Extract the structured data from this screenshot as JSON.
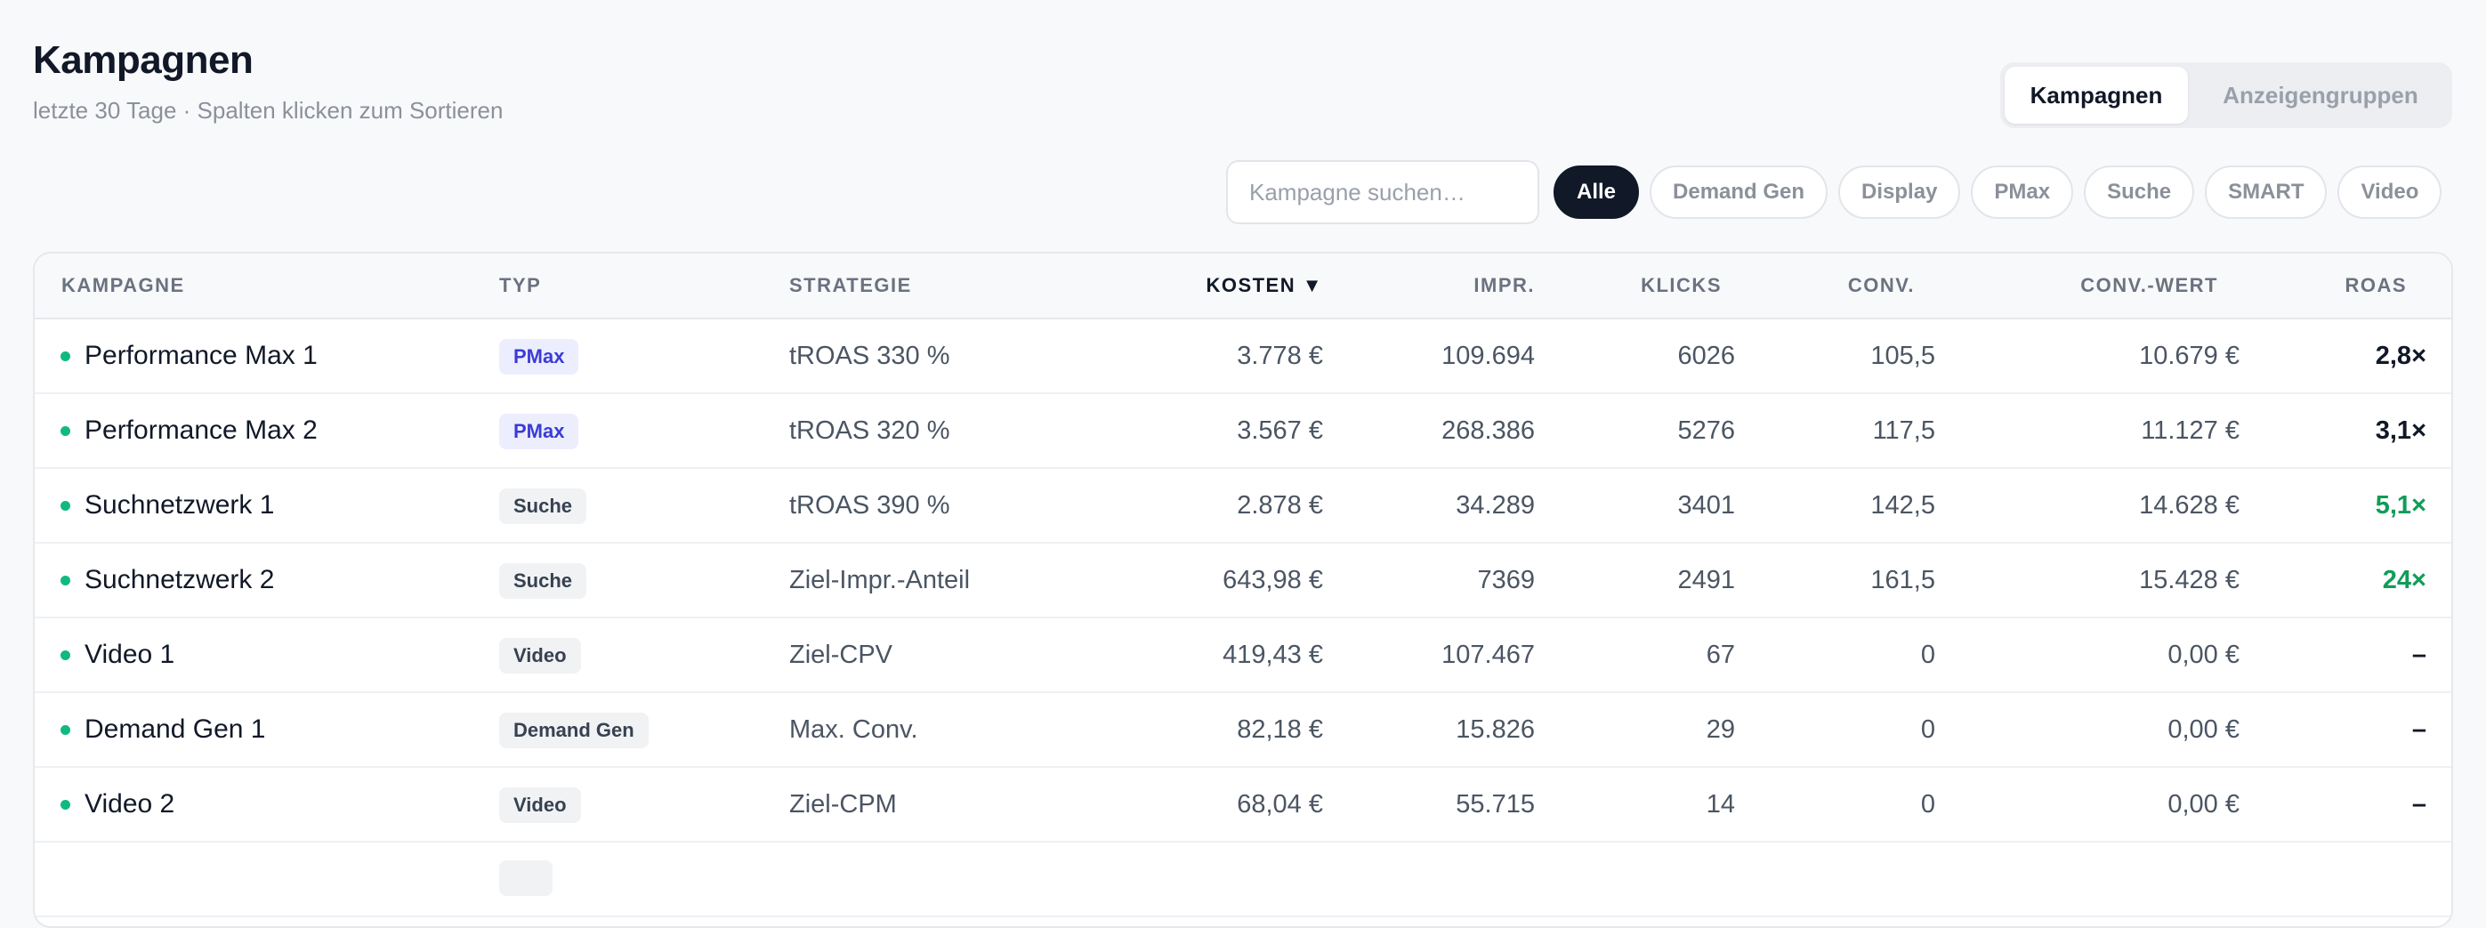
{
  "page": {
    "title": "Kampagnen",
    "subtitle": "letzte 30 Tage · Spalten klicken zum Sortieren"
  },
  "view_toggle": {
    "options": [
      "Kampagnen",
      "Anzeigengruppen"
    ],
    "selected": "Kampagnen"
  },
  "search": {
    "placeholder": "Kampagne suchen…",
    "value": ""
  },
  "filters": {
    "options": [
      "Alle",
      "Demand Gen",
      "Display",
      "PMax",
      "Suche",
      "SMART",
      "Video"
    ],
    "selected": "Alle"
  },
  "table": {
    "columns": [
      "KAMPAGNE",
      "TYP",
      "STRATEGIE",
      "KOSTEN ▼",
      "IMPR.",
      "KLICKS",
      "CONV.",
      "CONV.-WERT",
      "ROAS"
    ],
    "sorted_column": "KOSTEN",
    "rows": [
      {
        "name": "Performance Max 1",
        "type": "PMax",
        "strategy": "tROAS 330 %",
        "cost": "3.778 €",
        "impr": "109.694",
        "clicks": "6026",
        "conv": "105,5",
        "conv_value": "10.679 €",
        "roas": "2,8×",
        "roas_highlight": false
      },
      {
        "name": "Performance Max 2",
        "type": "PMax",
        "strategy": "tROAS 320 %",
        "cost": "3.567 €",
        "impr": "268.386",
        "clicks": "5276",
        "conv": "117,5",
        "conv_value": "11.127 €",
        "roas": "3,1×",
        "roas_highlight": false
      },
      {
        "name": "Suchnetzwerk 1",
        "type": "Suche",
        "strategy": "tROAS 390 %",
        "cost": "2.878 €",
        "impr": "34.289",
        "clicks": "3401",
        "conv": "142,5",
        "conv_value": "14.628 €",
        "roas": "5,1×",
        "roas_highlight": true
      },
      {
        "name": "Suchnetzwerk 2",
        "type": "Suche",
        "strategy": "Ziel-Impr.-Anteil",
        "cost": "643,98 €",
        "impr": "7369",
        "clicks": "2491",
        "conv": "161,5",
        "conv_value": "15.428 €",
        "roas": "24×",
        "roas_highlight": true
      },
      {
        "name": "Video 1",
        "type": "Video",
        "strategy": "Ziel-CPV",
        "cost": "419,43 €",
        "impr": "107.467",
        "clicks": "67",
        "conv": "0",
        "conv_value": "0,00 €",
        "roas": "–",
        "roas_highlight": false
      },
      {
        "name": "Demand Gen 1",
        "type": "Demand Gen",
        "strategy": "Max. Conv.",
        "cost": "82,18 €",
        "impr": "15.826",
        "clicks": "29",
        "conv": "0",
        "conv_value": "0,00 €",
        "roas": "–",
        "roas_highlight": false
      },
      {
        "name": "Video 2",
        "type": "Video",
        "strategy": "Ziel-CPM",
        "cost": "68,04 €",
        "impr": "55.715",
        "clicks": "14",
        "conv": "0",
        "conv_value": "0,00 €",
        "roas": "–",
        "roas_highlight": false
      }
    ]
  },
  "colors": {
    "status_active": "#10b981",
    "roas_good": "#0f9d58",
    "pmax_badge_text": "#3b3bd6",
    "pmax_badge_bg": "#eceefe",
    "primary_dark": "#111827"
  }
}
